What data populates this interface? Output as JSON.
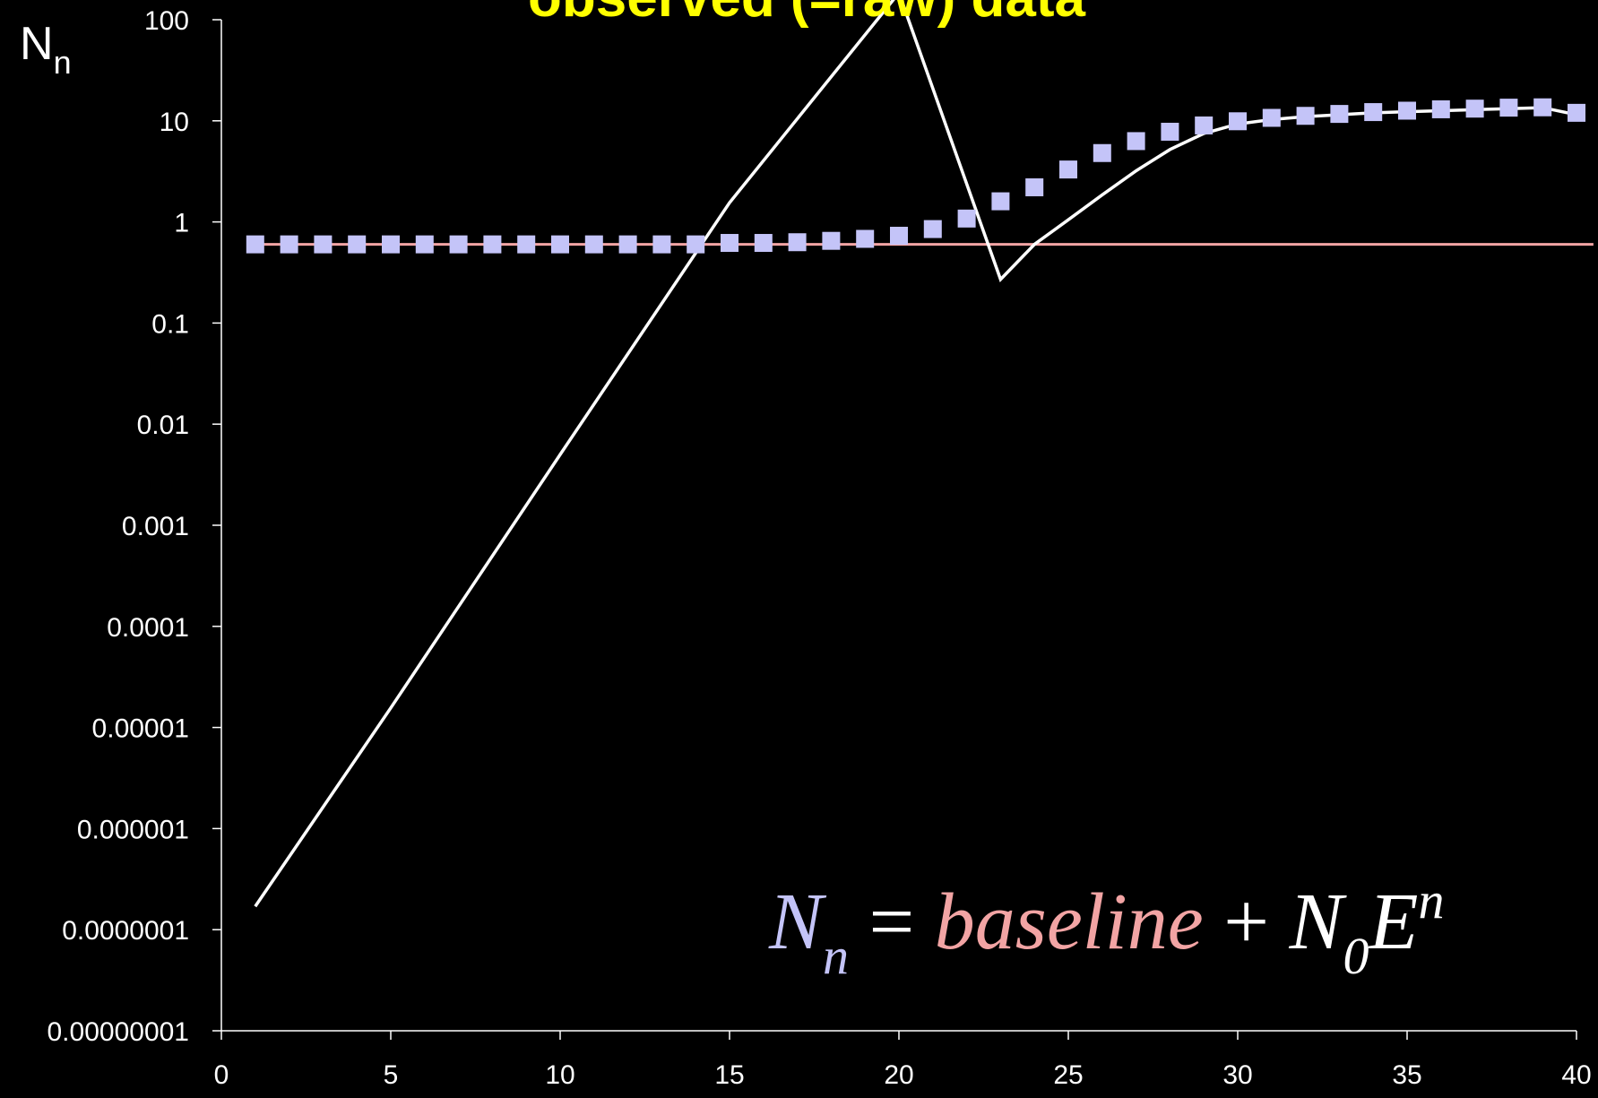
{
  "chart_data": {
    "type": "scatter",
    "title": "observed (=raw) data",
    "ylabel": {
      "main": "N",
      "sub": "n"
    },
    "xlim": [
      0,
      40
    ],
    "ylim": [
      1e-08,
      100
    ],
    "yscale": "log",
    "x_ticks": [
      "0",
      "5",
      "10",
      "15",
      "20",
      "25",
      "30",
      "35",
      "40"
    ],
    "y_ticks": [
      "100",
      "10",
      "1",
      "0.1",
      "0.01",
      "0.001",
      "0.0001",
      "0.00001",
      "0.000001",
      "0.0000001",
      "0.00000001"
    ],
    "grid": false,
    "series": [
      {
        "kind": "markers",
        "color": "#c4c4f8",
        "x": [
          1,
          2,
          3,
          4,
          5,
          6,
          7,
          8,
          9,
          10,
          11,
          12,
          13,
          14,
          15,
          16,
          17,
          18,
          19,
          20,
          21,
          22,
          23,
          24,
          25,
          26,
          27,
          28,
          29,
          30,
          31,
          32,
          33,
          34,
          35,
          36,
          37,
          38,
          39,
          40
        ],
        "y": [
          0.6,
          0.6,
          0.6,
          0.6,
          0.6,
          0.6,
          0.6,
          0.6,
          0.6,
          0.6,
          0.6,
          0.6,
          0.6,
          0.6,
          0.62,
          0.62,
          0.63,
          0.65,
          0.68,
          0.73,
          0.85,
          1.08,
          1.6,
          2.2,
          3.3,
          4.8,
          6.3,
          7.8,
          9.0,
          9.9,
          10.7,
          11.2,
          11.7,
          12.2,
          12.6,
          13.0,
          13.2,
          13.5,
          13.6,
          12.0
        ]
      },
      {
        "kind": "line",
        "color": "#ffffff",
        "x": [
          1,
          5,
          10,
          15,
          20,
          23,
          24,
          25,
          26,
          27,
          28,
          29,
          30,
          31,
          32,
          33,
          34,
          35,
          36,
          37,
          38,
          39,
          40
        ],
        "y": [
          1.7e-07,
          1.56e-05,
          0.005,
          1.55,
          500,
          0.27,
          0.6,
          1.05,
          1.85,
          3.2,
          5.2,
          7.5,
          9.3,
          10.3,
          11,
          11.5,
          12,
          12.3,
          12.6,
          12.9,
          13.2,
          13.5,
          11.5
        ]
      },
      {
        "kind": "baseline",
        "color": "#f2a4a4",
        "x": [
          1,
          40.5
        ],
        "y": [
          0.6,
          0.6
        ]
      }
    ],
    "annotation": {
      "N": "N",
      "n_sub": "n",
      "equals": " = ",
      "baseline": "baseline",
      "plus": " + ",
      "N0": "N",
      "zero_sub": "0",
      "E": "E",
      "n_sup": "n"
    },
    "colors": {
      "title": "#ffff00",
      "axis": "#ffffff",
      "marker": "#c4c4f8",
      "baseline": "#f2a4a4",
      "formula_N": "#c4c4f8",
      "formula_baseline": "#f2a4a4",
      "formula_rest": "#ffffff"
    }
  }
}
